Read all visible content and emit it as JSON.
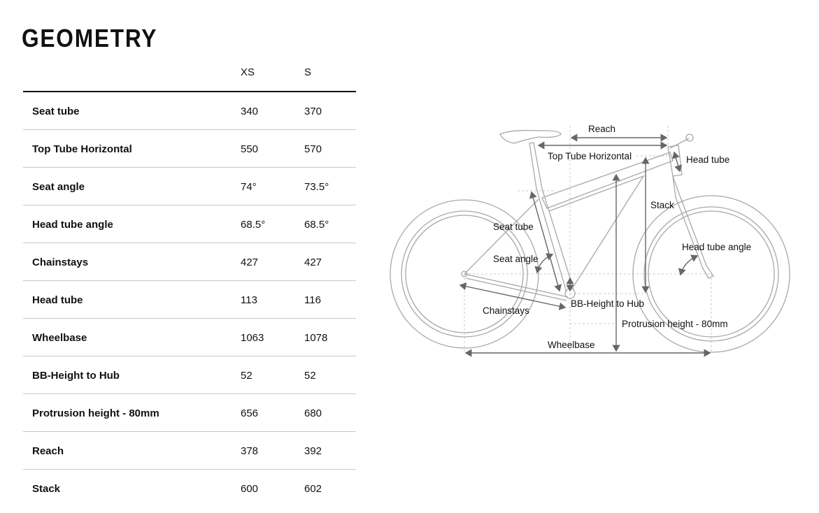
{
  "title": "GEOMETRY",
  "table": {
    "columns": [
      "XS",
      "S"
    ],
    "rows": [
      {
        "label": "Seat tube",
        "values": [
          "340",
          "370"
        ]
      },
      {
        "label": "Top Tube Horizontal",
        "values": [
          "550",
          "570"
        ]
      },
      {
        "label": "Seat angle",
        "values": [
          "74°",
          "73.5°"
        ]
      },
      {
        "label": "Head tube angle",
        "values": [
          "68.5°",
          "68.5°"
        ]
      },
      {
        "label": "Chainstays",
        "values": [
          "427",
          "427"
        ]
      },
      {
        "label": "Head tube",
        "values": [
          "113",
          "116"
        ]
      },
      {
        "label": "Wheelbase",
        "values": [
          "1063",
          "1078"
        ]
      },
      {
        "label": "BB-Height to Hub",
        "values": [
          "52",
          "52"
        ]
      },
      {
        "label": "Protrusion height - 80mm",
        "values": [
          "656",
          "680"
        ]
      },
      {
        "label": "Reach",
        "values": [
          "378",
          "392"
        ]
      },
      {
        "label": "Stack",
        "values": [
          "600",
          "602"
        ]
      }
    ]
  },
  "diagram": {
    "labels": {
      "reach": "Reach",
      "top_tube": "Top Tube Horizontal",
      "head_tube": "Head tube",
      "stack": "Stack",
      "seat_tube": "Seat tube",
      "seat_angle": "Seat angle",
      "head_tube_angle": "Head tube angle",
      "chainstays": "Chainstays",
      "bb_height": "BB-Height to Hub",
      "protrusion": "Protrusion height - 80mm",
      "wheelbase": "Wheelbase"
    },
    "colors": {
      "frame": "#a8a8a8",
      "arrow": "#666666",
      "guide": "#c8c8c8"
    }
  }
}
